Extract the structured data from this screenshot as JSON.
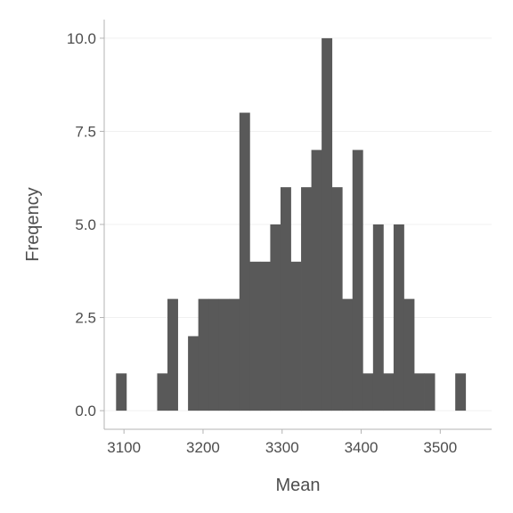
{
  "chart_data": {
    "type": "bar",
    "subtype": "histogram",
    "xlabel": "Mean",
    "ylabel": "Freqency",
    "bin_width": 13,
    "xlim": [
      3075,
      3565
    ],
    "ylim": [
      -0.5,
      10.5
    ],
    "grid": "horizontal",
    "bar_color": "#595959",
    "x_ticks": [
      3100,
      3200,
      3300,
      3400,
      3500
    ],
    "x_tick_labels": [
      "3100",
      "3200",
      "3300",
      "3400",
      "3500"
    ],
    "y_ticks": [
      0,
      2.5,
      5,
      7.5,
      10
    ],
    "y_tick_labels": [
      "0.0",
      "2.5",
      "5.0",
      "7.5",
      "10.0"
    ],
    "bins": [
      {
        "start": 3090,
        "count": 1
      },
      {
        "start": 3103,
        "count": 0
      },
      {
        "start": 3116,
        "count": 0
      },
      {
        "start": 3129,
        "count": 0
      },
      {
        "start": 3142,
        "count": 1
      },
      {
        "start": 3155,
        "count": 3
      },
      {
        "start": 3168,
        "count": 0
      },
      {
        "start": 3181,
        "count": 2
      },
      {
        "start": 3194,
        "count": 3
      },
      {
        "start": 3207,
        "count": 3
      },
      {
        "start": 3220,
        "count": 3
      },
      {
        "start": 3233,
        "count": 3
      },
      {
        "start": 3246,
        "count": 8
      },
      {
        "start": 3259,
        "count": 4
      },
      {
        "start": 3272,
        "count": 4
      },
      {
        "start": 3285,
        "count": 5
      },
      {
        "start": 3298,
        "count": 6
      },
      {
        "start": 3311,
        "count": 4
      },
      {
        "start": 3324,
        "count": 6
      },
      {
        "start": 3337,
        "count": 7
      },
      {
        "start": 3350,
        "count": 10
      },
      {
        "start": 3363,
        "count": 6
      },
      {
        "start": 3376,
        "count": 3
      },
      {
        "start": 3389,
        "count": 7
      },
      {
        "start": 3402,
        "count": 1
      },
      {
        "start": 3415,
        "count": 5
      },
      {
        "start": 3428,
        "count": 1
      },
      {
        "start": 3441,
        "count": 5
      },
      {
        "start": 3454,
        "count": 3
      },
      {
        "start": 3467,
        "count": 1
      },
      {
        "start": 3480,
        "count": 1
      },
      {
        "start": 3493,
        "count": 0
      },
      {
        "start": 3506,
        "count": 0
      },
      {
        "start": 3519,
        "count": 1
      }
    ]
  }
}
